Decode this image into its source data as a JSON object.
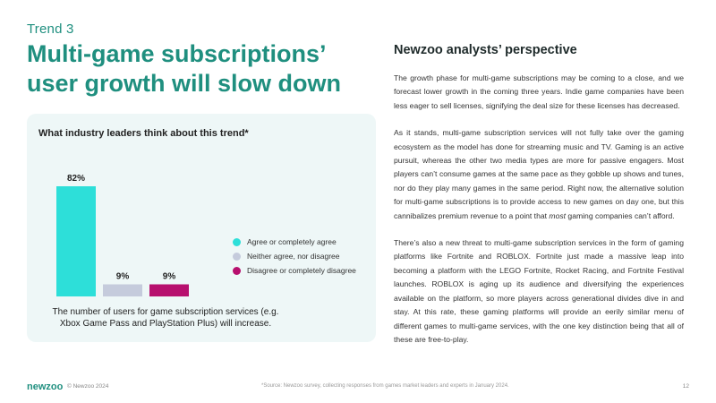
{
  "header": {
    "trend": "Trend 3",
    "title": "Multi-game subscriptions’ user growth will slow down"
  },
  "chart_data": {
    "type": "bar",
    "title": "What industry leaders think about this trend*",
    "categories": [
      "Agree or completely agree",
      "Neither agree, nor disagree",
      "Disagree or completely disagree"
    ],
    "values": [
      82,
      9,
      9
    ],
    "value_labels": [
      "82%",
      "9%",
      "9%"
    ],
    "colors": [
      "#2ddfd9",
      "#c5cbdc",
      "#b7106e"
    ],
    "ylim": [
      0,
      100
    ],
    "grid": false,
    "legend": "right",
    "caption": "The number of users for game subscription services (e.g. Xbox Game Pass and PlayStation Plus) will increase."
  },
  "perspective": {
    "heading": "Newzoo analysts’ perspective",
    "p1": "The growth phase for multi-game subscriptions may be coming to a close, and we forecast lower growth in the coming three years. Indie game companies have been less eager to sell licenses, signifying the deal size for these licenses has decreased.",
    "p2_before": "As it stands, multi-game subscription services will not fully take over the gaming ecosystem as the model has done for streaming music and TV. Gaming is an active pursuit, whereas the other two media types are more for passive engagers. Most players can’t consume games at the same pace as they gobble up shows and tunes, nor do they play many games in the same period. Right now, the alternative solution for multi-game subscriptions is to provide access to new games on day one, but this cannibalizes premium revenue to a point that ",
    "p2_em": "most",
    "p2_after": " gaming companies can’t afford.",
    "p3": "There’s also a new threat to multi-game subscription services in the form of gaming platforms like Fortnite and ROBLOX. Fortnite just made a massive leap into becoming a platform with the LEGO Fortnite, Rocket Racing, and Fortnite Festival launches. ROBLOX is aging up its audience and diversifying the experiences available on the platform, so more players across generational divides dive in and stay. At this rate, these gaming platforms will provide an eerily similar menu of different games to multi-game services, with the one key distinction being that all of these are free-to-play."
  },
  "footer": {
    "brand": "newzoo",
    "copyright": "© Newzoo 2024",
    "source": "*Source: Newzoo survey, collecting responses from games market leaders and experts in January 2024.",
    "page": "12"
  }
}
